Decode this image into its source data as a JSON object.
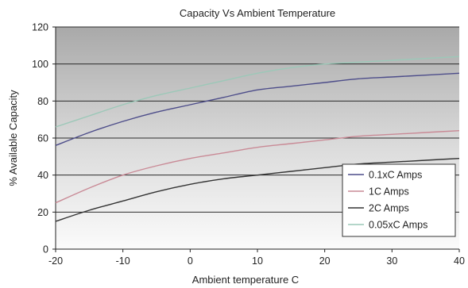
{
  "chart_data": {
    "type": "line",
    "title": "Capacity Vs Ambient Temperature",
    "xlabel": "Ambient temperature  C",
    "ylabel": "% Available Capacity",
    "xlim": [
      -20,
      40
    ],
    "ylim": [
      0,
      120
    ],
    "xticks": [
      -20,
      -10,
      0,
      10,
      20,
      30,
      40
    ],
    "yticks": [
      0,
      20,
      40,
      60,
      80,
      100,
      120
    ],
    "grid": true,
    "legend_position": "bottom-right",
    "x": [
      -20,
      -15,
      -10,
      -5,
      0,
      5,
      10,
      15,
      20,
      25,
      30,
      35,
      40
    ],
    "series": [
      {
        "name": "0.1xC Amps",
        "color": "#4d4d8a",
        "values": [
          56,
          63,
          69,
          74,
          78,
          82,
          86,
          88,
          90,
          92,
          93,
          94,
          95
        ]
      },
      {
        "name": "1C Amps",
        "color": "#c98a96",
        "values": [
          25,
          33,
          40,
          45,
          49,
          52,
          55,
          57,
          59,
          61,
          62,
          63,
          64
        ]
      },
      {
        "name": "2C Amps",
        "color": "#333333",
        "values": [
          15,
          21,
          26,
          31,
          35,
          38,
          40,
          42,
          44,
          46,
          47,
          48,
          49
        ]
      },
      {
        "name": "0.05xC Amps",
        "color": "#9cc8b8",
        "values": [
          66,
          72,
          78,
          83,
          87,
          91,
          95,
          98,
          100,
          101,
          102,
          103,
          104
        ]
      }
    ]
  }
}
